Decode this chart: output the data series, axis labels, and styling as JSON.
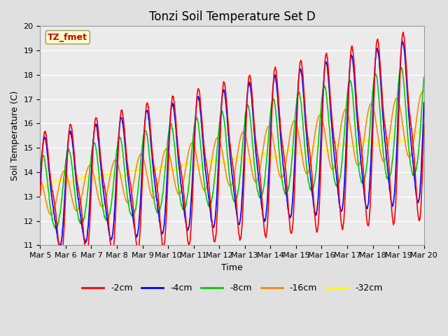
{
  "title": "Tonzi Soil Temperature Set D",
  "xlabel": "Time",
  "ylabel": "Soil Temperature (C)",
  "ylim": [
    11.0,
    20.0
  ],
  "yticks": [
    11.0,
    12.0,
    13.0,
    14.0,
    15.0,
    16.0,
    17.0,
    18.0,
    19.0,
    20.0
  ],
  "xtick_labels": [
    "Mar 5",
    "Mar 6",
    "Mar 7",
    "Mar 8",
    "Mar 9",
    "Mar 10",
    "Mar 11",
    "Mar 12",
    "Mar 13",
    "Mar 14",
    "Mar 15",
    "Mar 16",
    "Mar 17",
    "Mar 18",
    "Mar 19",
    "Mar 20"
  ],
  "series_colors": [
    "#ff0000",
    "#0000ff",
    "#00cc00",
    "#ff8800",
    "#ffff00"
  ],
  "series_labels": [
    "-2cm",
    "-4cm",
    "-8cm",
    "-16cm",
    "-32cm"
  ],
  "series_linewidths": [
    1.2,
    1.2,
    1.2,
    1.2,
    1.5
  ],
  "annotation_text": "TZ_fmet",
  "annotation_color": "#cc0000",
  "annotation_bg": "#ffffcc",
  "background_color": "#e0e0e0",
  "plot_bg_color": "#ebebeb",
  "grid_color": "#ffffff",
  "title_fontsize": 12,
  "axis_label_fontsize": 9,
  "tick_fontsize": 8
}
